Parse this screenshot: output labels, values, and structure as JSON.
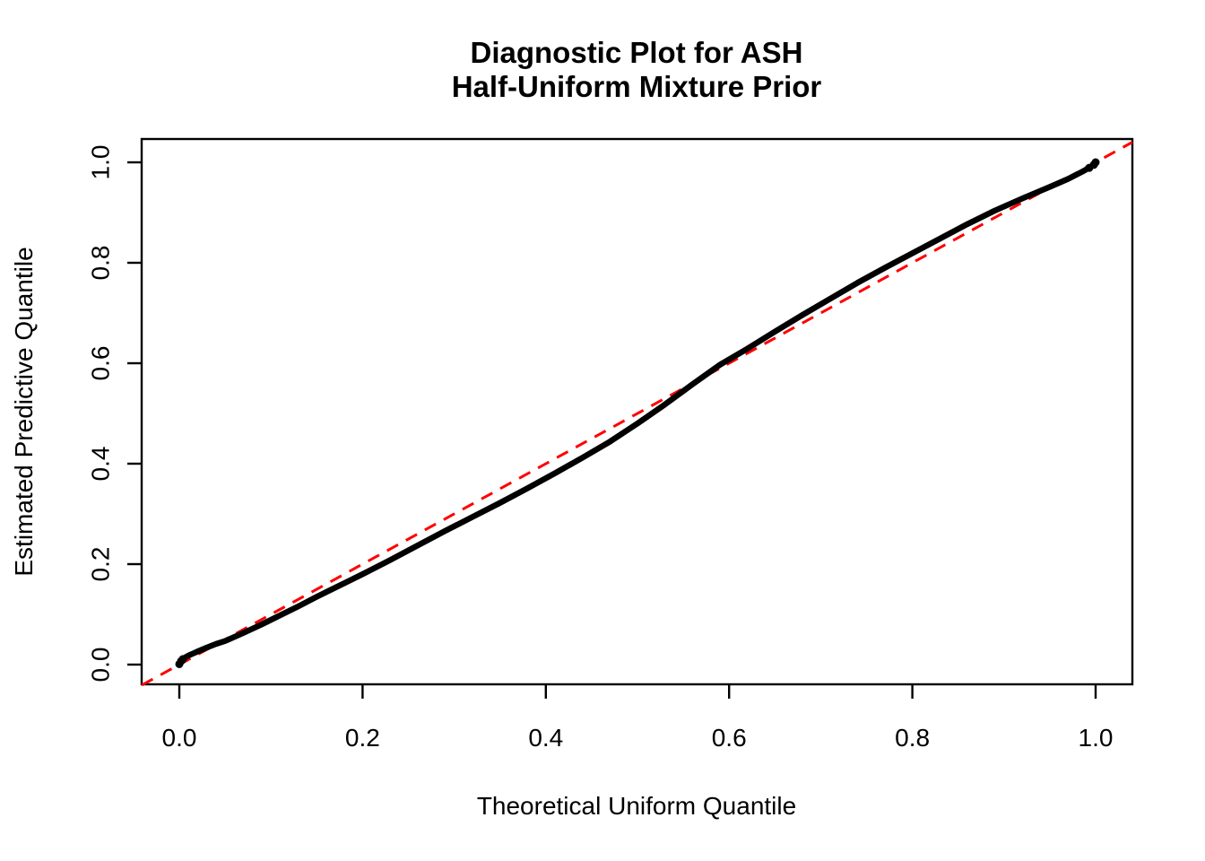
{
  "chart_data": {
    "type": "scatter",
    "title_lines": [
      "Diagnostic Plot for ASH",
      "Half-Uniform Mixture Prior"
    ],
    "xlabel": "Theoretical Uniform Quantile",
    "ylabel": "Estimated Predictive Quantile",
    "xlim": [
      -0.04,
      1.04
    ],
    "ylim": [
      -0.04,
      1.04
    ],
    "grid": false,
    "legend": "none",
    "x_ticks": {
      "values": [
        0.0,
        0.2,
        0.4,
        0.6,
        0.8,
        1.0
      ],
      "labels": [
        "0.0",
        "0.2",
        "0.4",
        "0.6",
        "0.8",
        "1.0"
      ]
    },
    "y_ticks": {
      "values": [
        0.0,
        0.2,
        0.4,
        0.6,
        0.8,
        1.0
      ],
      "labels": [
        "0.0",
        "0.2",
        "0.4",
        "0.6",
        "0.8",
        "1.0"
      ]
    },
    "colors": {
      "curve": "#000000",
      "reference": "#FF0000",
      "background": "#FFFFFF",
      "axis": "#000000"
    },
    "series": [
      {
        "name": "estimated-vs-theoretical-quantiles",
        "marker": "dense-points",
        "color": "#000000",
        "points": [
          [
            0.0,
            0.001
          ],
          [
            0.002,
            0.007
          ],
          [
            0.004,
            0.011
          ],
          [
            0.007,
            0.015
          ],
          [
            0.01,
            0.018
          ],
          [
            0.015,
            0.022
          ],
          [
            0.02,
            0.026
          ],
          [
            0.03,
            0.034
          ],
          [
            0.04,
            0.041
          ],
          [
            0.05,
            0.047
          ],
          [
            0.07,
            0.063
          ],
          [
            0.09,
            0.08
          ],
          [
            0.11,
            0.098
          ],
          [
            0.13,
            0.116
          ],
          [
            0.15,
            0.135
          ],
          [
            0.17,
            0.153
          ],
          [
            0.2,
            0.18
          ],
          [
            0.23,
            0.208
          ],
          [
            0.26,
            0.237
          ],
          [
            0.29,
            0.266
          ],
          [
            0.32,
            0.294
          ],
          [
            0.35,
            0.322
          ],
          [
            0.38,
            0.351
          ],
          [
            0.41,
            0.381
          ],
          [
            0.44,
            0.412
          ],
          [
            0.47,
            0.444
          ],
          [
            0.5,
            0.48
          ],
          [
            0.53,
            0.518
          ],
          [
            0.56,
            0.558
          ],
          [
            0.59,
            0.597
          ],
          [
            0.62,
            0.629
          ],
          [
            0.65,
            0.663
          ],
          [
            0.68,
            0.696
          ],
          [
            0.71,
            0.728
          ],
          [
            0.74,
            0.76
          ],
          [
            0.77,
            0.79
          ],
          [
            0.8,
            0.819
          ],
          [
            0.83,
            0.848
          ],
          [
            0.86,
            0.877
          ],
          [
            0.89,
            0.904
          ],
          [
            0.92,
            0.928
          ],
          [
            0.95,
            0.951
          ],
          [
            0.97,
            0.967
          ],
          [
            0.985,
            0.981
          ],
          [
            0.993,
            0.989
          ],
          [
            0.998,
            0.995
          ],
          [
            1.0,
            1.0
          ]
        ]
      }
    ],
    "reference_line": {
      "name": "y = x",
      "color": "#FF0000",
      "style": "dashed",
      "from": [
        -0.041,
        -0.041
      ],
      "to": [
        1.04,
        1.04
      ]
    }
  }
}
